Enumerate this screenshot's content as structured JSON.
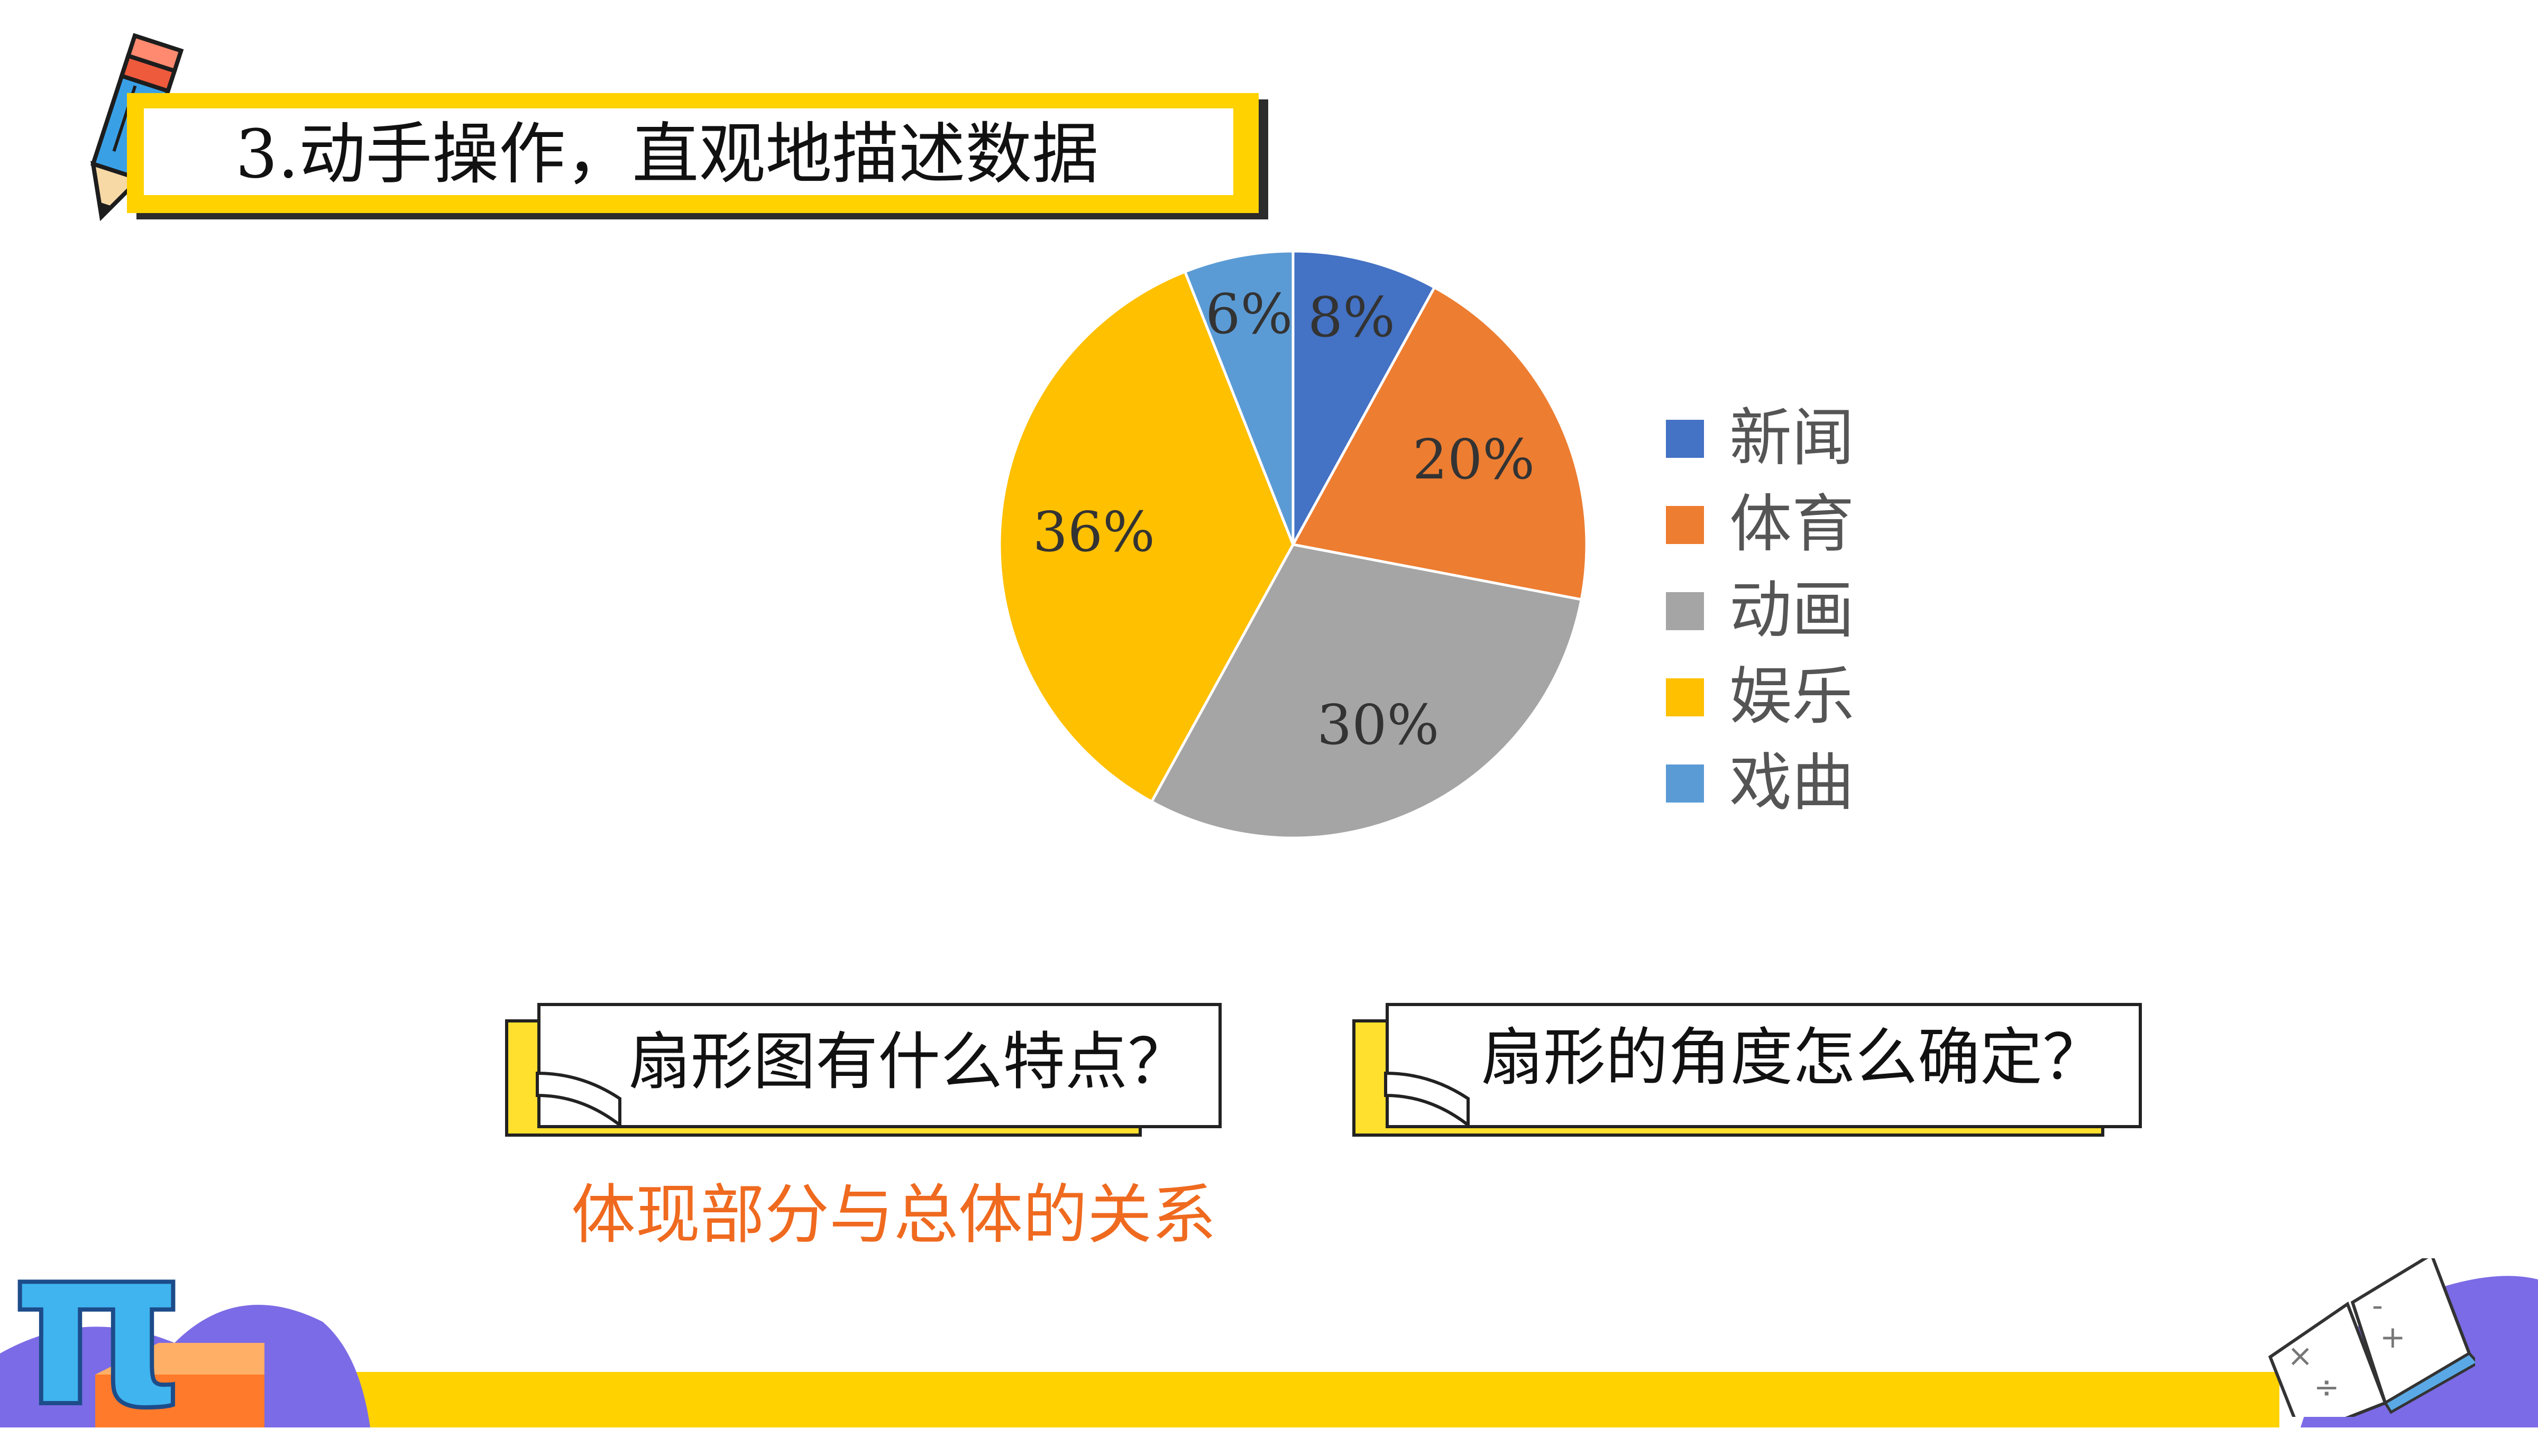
{
  "title": "3.动手操作，直观地描述数据",
  "colors": {
    "banner_yellow": "#ffd200",
    "answer_orange": "#ef6a1f",
    "purple_decor": "#7b6be6"
  },
  "icons": [
    "pencil-icon",
    "pi-symbol-icon",
    "book-icon"
  ],
  "decor": {
    "pi_symbol": "π",
    "book_marks": [
      "-",
      "+",
      "×",
      "÷"
    ]
  },
  "chart_data": {
    "type": "pie",
    "categories": [
      "新闻",
      "体育",
      "动画",
      "娱乐",
      "戏曲"
    ],
    "values": [
      8,
      20,
      30,
      36,
      6
    ],
    "labels": [
      "8%",
      "20%",
      "30%",
      "36%",
      "6%"
    ],
    "colors": [
      "#4472c4",
      "#ed7d31",
      "#a5a5a5",
      "#ffc000",
      "#5b9bd5"
    ],
    "start_angle": "12 o'clock",
    "direction": "clockwise",
    "legend_position": "right"
  },
  "questions": [
    {
      "text": "扇形图有什么特点？"
    },
    {
      "text": "扇形的角度怎么确定？"
    }
  ],
  "answer": "体现部分与总体的关系"
}
